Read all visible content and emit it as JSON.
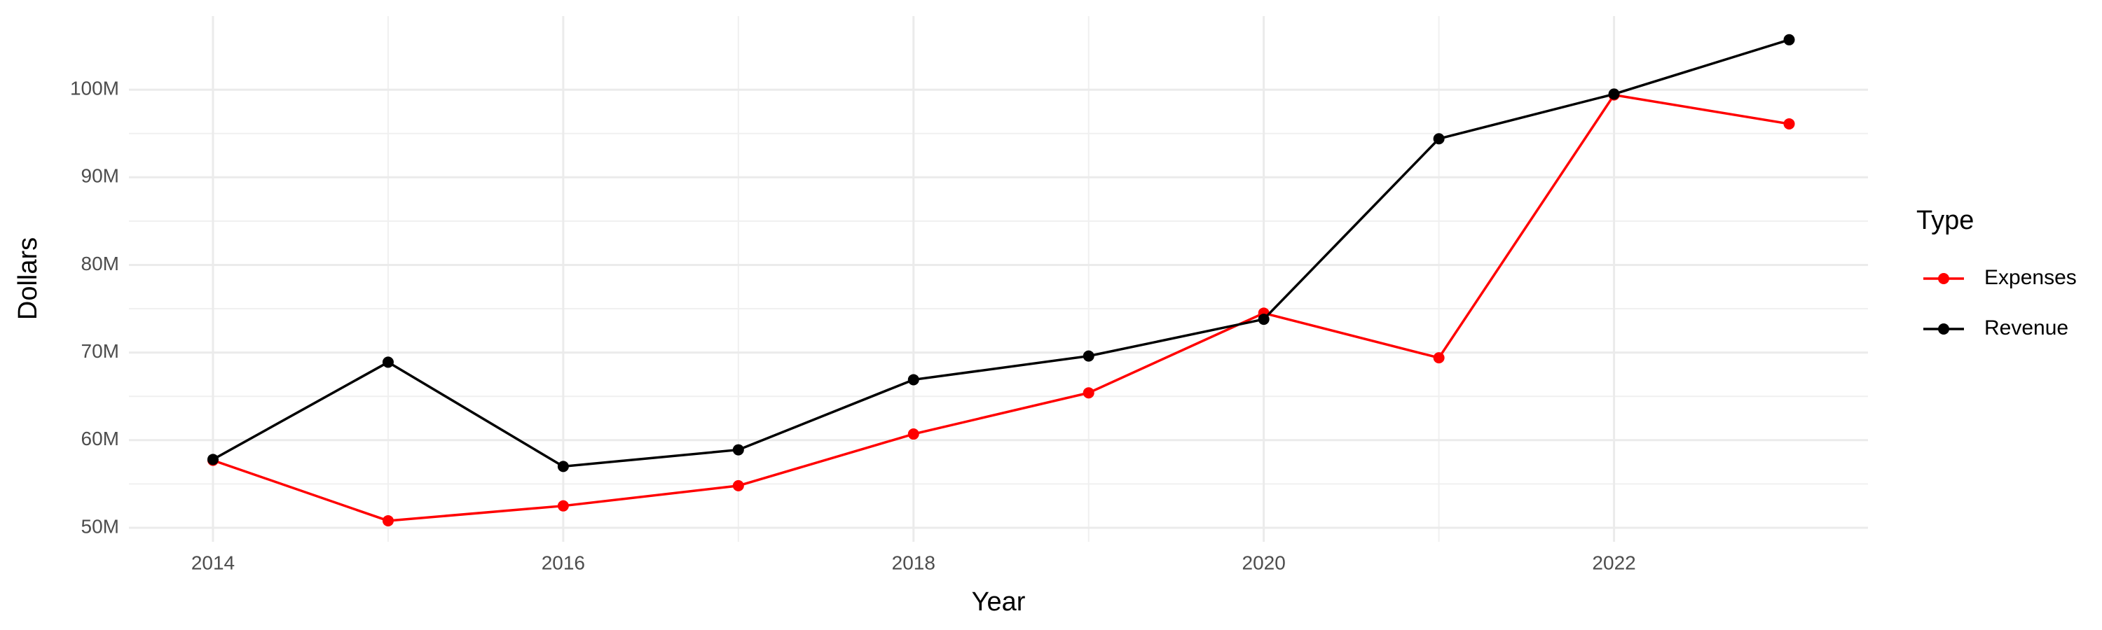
{
  "chart_data": {
    "type": "line",
    "x_label": "Year",
    "y_label": "Dollars",
    "legend_title": "Type",
    "x": [
      2014,
      2015,
      2016,
      2017,
      2018,
      2019,
      2020,
      2021,
      2022,
      2023
    ],
    "series": [
      {
        "name": "Expenses",
        "color": "#ff0000",
        "values": [
          57700000,
          50800000,
          52500000,
          54800000,
          60700000,
          65400000,
          74500000,
          69400000,
          99400000,
          96100000
        ]
      },
      {
        "name": "Revenue",
        "color": "#000000",
        "values": [
          57800000,
          68900000,
          57000000,
          58900000,
          66900000,
          69600000,
          73800000,
          94400000,
          99500000,
          105700000
        ]
      }
    ],
    "xlim": [
      2013.52,
      2023.45
    ],
    "xticks": [
      2014,
      2016,
      2018,
      2020,
      2022
    ],
    "ylim": [
      48400000,
      108400000
    ],
    "yticks": [
      {
        "value": 50000000,
        "label": "50M"
      },
      {
        "value": 60000000,
        "label": "60M"
      },
      {
        "value": 70000000,
        "label": "70M"
      },
      {
        "value": 80000000,
        "label": "80M"
      },
      {
        "value": 90000000,
        "label": "90M"
      },
      {
        "value": 100000000,
        "label": "100M"
      }
    ],
    "grid": true,
    "legend_position": "right"
  }
}
